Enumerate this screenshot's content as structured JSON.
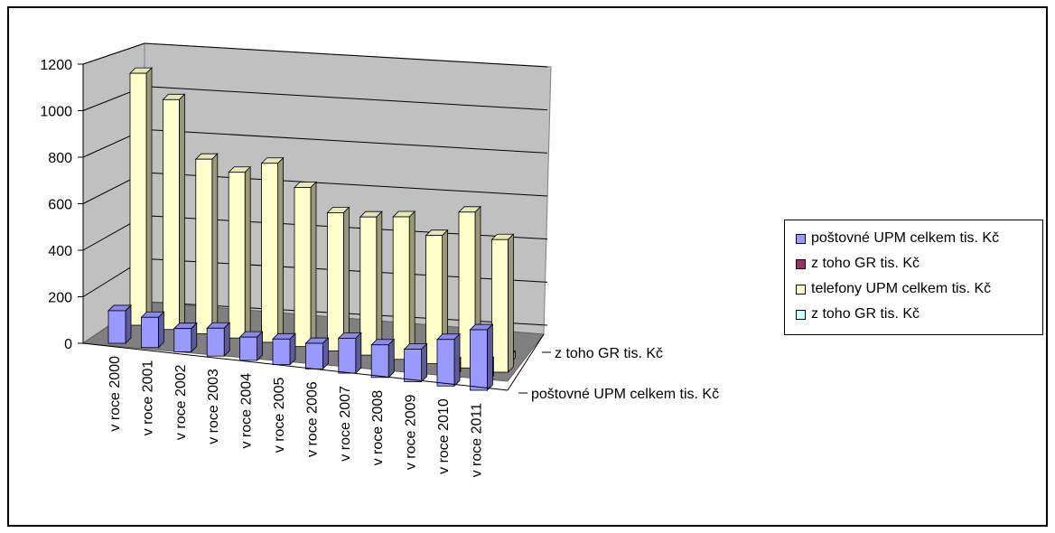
{
  "chart_data": {
    "type": "bar",
    "title": "",
    "categories": [
      "v roce 2000",
      "v roce 2001",
      "v roce 2002",
      "v roce 2003",
      "v roce 2004",
      "v roce 2005",
      "v roce 2006",
      "v roce 2007",
      "v roce 2008",
      "v roce 2009",
      "v roce 2010",
      "v roce 2011"
    ],
    "depth_categories": [
      "poštovné UPM celkem tis. Kč",
      "z toho GR tis. Kč"
    ],
    "series": [
      {
        "name": "poštovné UPM celkem tis. Kč",
        "color": "#9999ff",
        "values": [
          140,
          130,
          100,
          120,
          100,
          110,
          110,
          150,
          140,
          140,
          200,
          260
        ]
      },
      {
        "name": "z toho GR tis. Kč",
        "color": "#993366",
        "values": [
          0,
          0,
          0,
          0,
          0,
          0,
          0,
          0,
          0,
          0,
          60,
          80
        ]
      },
      {
        "name": "telefony UPM celkem tis. Kč",
        "color": "#ffffcc",
        "values": [
          1140,
          1040,
          790,
          750,
          810,
          720,
          625,
          625,
          645,
          580,
          705,
          600
        ]
      },
      {
        "name": "z toho GR tis. Kč",
        "color": "#ccffff",
        "values": [
          0,
          0,
          0,
          0,
          0,
          0,
          0,
          0,
          0,
          0,
          20,
          30
        ]
      }
    ],
    "yticks": [
      0,
      200,
      400,
      600,
      800,
      1000,
      1200
    ],
    "ylim": [
      0,
      1200
    ],
    "legend_position": "right",
    "grid": true
  }
}
